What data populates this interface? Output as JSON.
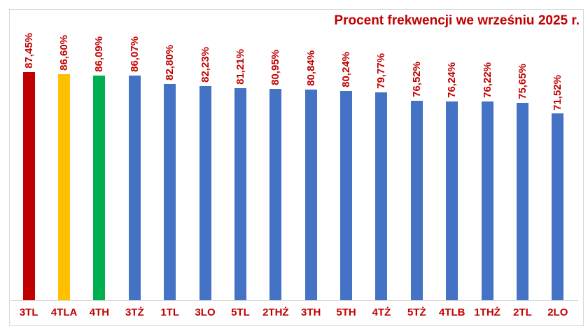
{
  "page": {
    "background_color": "#FFFFFF",
    "frame_border_color": "#D9D9D9"
  },
  "chart_data": {
    "type": "bar",
    "title": "Procent frekwencji we wrześniu 2025 r.",
    "title_color": "#C00000",
    "xlabel": "",
    "ylabel": "",
    "ylim": [
      0,
      100
    ],
    "grid": false,
    "legend": false,
    "value_label_rotation_deg": 90,
    "value_label_color": "#C00000",
    "category_label_color": "#C00000",
    "axis_line_color": "#D9D9D9",
    "categories": [
      "3TL",
      "4TLA",
      "4TH",
      "3TŻ",
      "1TL",
      "3LO",
      "5TL",
      "2THŻ",
      "3TH",
      "5TH",
      "4TŻ",
      "5TŻ",
      "4TLB",
      "1THŻ",
      "2TL",
      "2LO"
    ],
    "values": [
      87.45,
      86.6,
      86.09,
      86.07,
      82.8,
      82.23,
      81.21,
      80.95,
      80.84,
      80.24,
      79.77,
      76.52,
      76.24,
      76.22,
      75.65,
      71.52
    ],
    "value_labels": [
      "87,45%",
      "86,60%",
      "86,09%",
      "86,07%",
      "82,80%",
      "82,23%",
      "81,21%",
      "80,95%",
      "80,84%",
      "80,24%",
      "79,77%",
      "76,52%",
      "76,24%",
      "76,22%",
      "75,65%",
      "71,52%"
    ],
    "bar_colors": [
      "#C00000",
      "#FFC000",
      "#00B050",
      "#4472C4",
      "#4472C4",
      "#4472C4",
      "#4472C4",
      "#4472C4",
      "#4472C4",
      "#4472C4",
      "#4472C4",
      "#4472C4",
      "#4472C4",
      "#4472C4",
      "#4472C4",
      "#4472C4"
    ],
    "highlight_palette": {
      "red": "#C00000",
      "orange": "#FFC000",
      "green": "#00B050",
      "blue": "#4472C4"
    }
  }
}
